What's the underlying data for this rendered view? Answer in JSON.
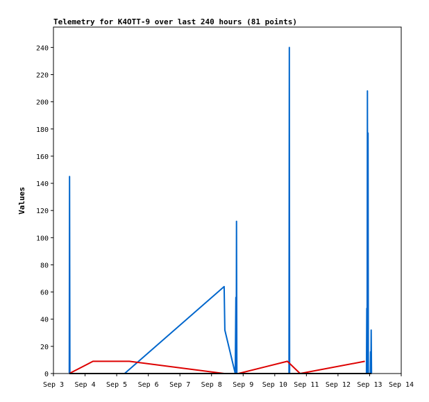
{
  "chart_data": {
    "type": "line",
    "title": "Telemetry for K4OTT-9 over last 240 hours (81 points)",
    "xlabel": "",
    "ylabel": "Values",
    "xlim": [
      3.0,
      14.0
    ],
    "ylim": [
      0,
      255
    ],
    "x_ticks": [
      {
        "value": 3,
        "label": "Sep 3"
      },
      {
        "value": 4,
        "label": "Sep 4"
      },
      {
        "value": 5,
        "label": "Sep 5"
      },
      {
        "value": 6,
        "label": "Sep 6"
      },
      {
        "value": 7,
        "label": "Sep 7"
      },
      {
        "value": 8,
        "label": "Sep 8"
      },
      {
        "value": 9,
        "label": "Sep 9"
      },
      {
        "value": 10,
        "label": "Sep 10"
      },
      {
        "value": 11,
        "label": "Sep 11"
      },
      {
        "value": 12,
        "label": "Sep 12"
      },
      {
        "value": 13,
        "label": "Sep 13"
      },
      {
        "value": 14,
        "label": "Sep 14"
      }
    ],
    "y_ticks": [
      0,
      20,
      40,
      60,
      80,
      100,
      120,
      140,
      160,
      180,
      200,
      220,
      240
    ],
    "grid": false,
    "legend": "none",
    "series": [
      {
        "color": "#0066cc",
        "points": [
          [
            3.5,
            0
          ],
          [
            3.51,
            145
          ],
          [
            3.52,
            0
          ],
          [
            5.25,
            0
          ],
          [
            8.4,
            64
          ],
          [
            8.42,
            32
          ],
          [
            8.75,
            0
          ],
          [
            8.77,
            56
          ],
          [
            8.78,
            0
          ],
          [
            8.79,
            112
          ],
          [
            8.8,
            0
          ],
          [
            10.45,
            0
          ],
          [
            10.46,
            240
          ],
          [
            10.47,
            0
          ],
          [
            12.9,
            0
          ],
          [
            12.91,
            48
          ],
          [
            12.92,
            0
          ],
          [
            12.93,
            208
          ],
          [
            12.94,
            0
          ],
          [
            12.95,
            177
          ],
          [
            12.96,
            0
          ],
          [
            13.02,
            0
          ],
          [
            13.03,
            16
          ],
          [
            13.04,
            0
          ],
          [
            13.05,
            32
          ],
          [
            13.06,
            0
          ]
        ]
      },
      {
        "color": "#dd0000",
        "points": [
          [
            3.5,
            0
          ],
          [
            4.25,
            9
          ],
          [
            5.4,
            9
          ],
          [
            8.4,
            0
          ],
          [
            8.85,
            0
          ],
          [
            10.4,
            9
          ],
          [
            10.8,
            0
          ],
          [
            12.85,
            9
          ]
        ]
      },
      {
        "color": "#000000",
        "points": [
          [
            3.5,
            0
          ],
          [
            13.06,
            0
          ]
        ]
      }
    ]
  }
}
